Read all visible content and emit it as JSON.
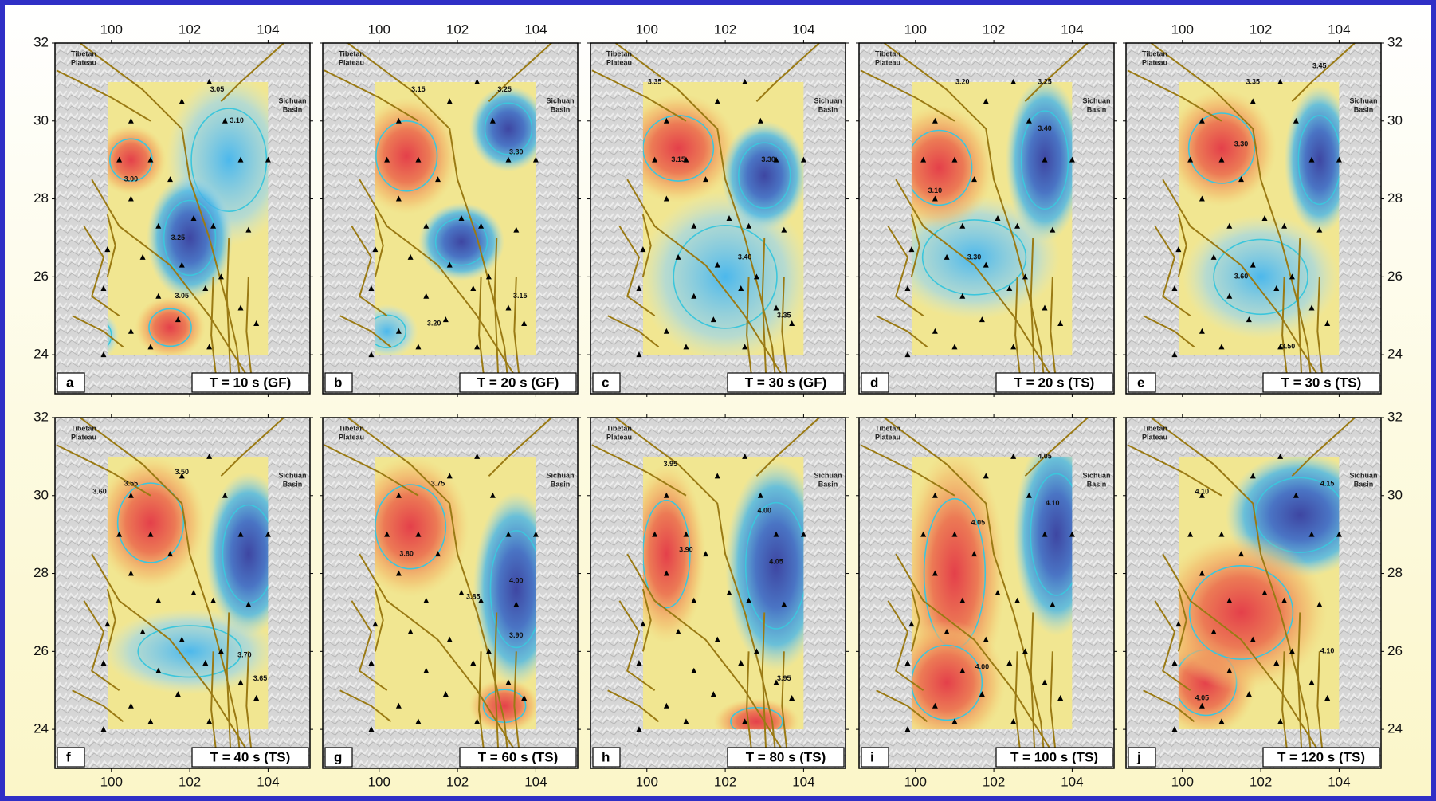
{
  "lon_ticks": [
    100,
    102,
    104
  ],
  "lat_ticks": [
    24,
    26,
    28,
    30,
    32
  ],
  "region_labels": {
    "tibet": [
      "Tibetan",
      "Plateau"
    ],
    "sichuan": [
      "Sichuan",
      "Basin"
    ]
  },
  "panels": [
    {
      "letter": "a",
      "label": "T = 10 s (GF)",
      "contour_labels": [
        "3.05",
        "3.10",
        "3.00",
        "3.25",
        "3.05"
      ]
    },
    {
      "letter": "b",
      "label": "T = 20 s (GF)",
      "contour_labels": [
        "3.15",
        "3.25",
        "3.30",
        "3.20",
        "3.15"
      ]
    },
    {
      "letter": "c",
      "label": "T = 30 s (GF)",
      "contour_labels": [
        "3.35",
        "3.15",
        "3.30",
        "3.40",
        "3.35"
      ]
    },
    {
      "letter": "d",
      "label": "T = 20 s (TS)",
      "contour_labels": [
        "3.20",
        "3.25",
        "3.40",
        "3.10",
        "3.30"
      ]
    },
    {
      "letter": "e",
      "label": "T = 30 s (TS)",
      "contour_labels": [
        "3.45",
        "3.35",
        "3.30",
        "3.60",
        "3.50"
      ]
    },
    {
      "letter": "f",
      "label": "T = 40 s (TS)",
      "contour_labels": [
        "3.60",
        "3.55",
        "3.50",
        "3.70",
        "3.65"
      ]
    },
    {
      "letter": "g",
      "label": "T = 60 s (TS)",
      "contour_labels": [
        "3.75",
        "3.80",
        "3.85",
        "4.00",
        "3.90"
      ]
    },
    {
      "letter": "h",
      "label": "T = 80 s (TS)",
      "contour_labels": [
        "3.95",
        "3.90",
        "4.00",
        "4.05",
        "3.95"
      ]
    },
    {
      "letter": "i",
      "label": "T = 100 s (TS)",
      "contour_labels": [
        "4.05",
        "4.10",
        "4.00",
        "4.05"
      ]
    },
    {
      "letter": "j",
      "label": "T = 120 s (TS)",
      "contour_labels": [
        "4.10",
        "4.15",
        "4.10",
        "4.05"
      ]
    }
  ]
}
